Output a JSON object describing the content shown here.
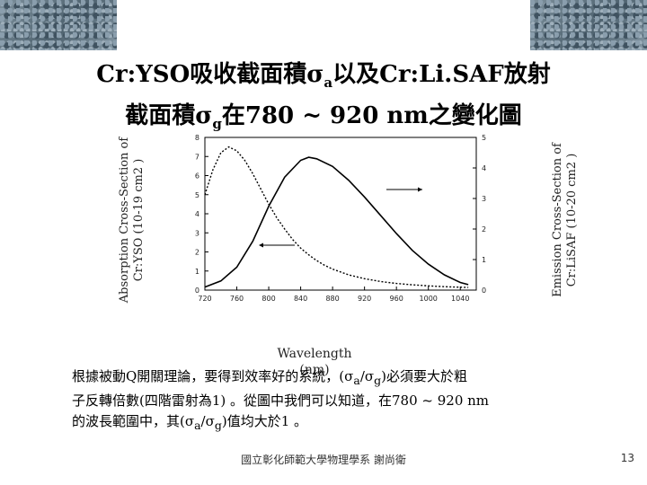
{
  "slide": {
    "title_line1_prefix": "Cr:YSO吸收截面積σ",
    "title_line1_sub": "a",
    "title_line1_suffix": "以及Cr:Li.SAF放射",
    "title_line2_prefix": "截面積σ",
    "title_line2_sub": "g",
    "title_line2_suffix": "在780 ~ 920 nm之變化圖",
    "body": {
      "l1a": "根據被動Q開關理論，要得到效率好的系統，(σ",
      "l1b": "a",
      "l1c": "/σ",
      "l1d": "g",
      "l1e": ")必須要大於粗",
      "l2": "子反轉倍數(四階雷射為1) 。從圖中我們可以知道，在780 ~ 920 nm",
      "l3a": "的波長範圍中，其(σ",
      "l3b": "a",
      "l3c": "/σ",
      "l3d": "g",
      "l3e": ")值均大於1 。"
    },
    "footer": "國立彰化師範大學物理學系 謝尚衛",
    "page_number": "13"
  },
  "chart_data": {
    "type": "line",
    "left_axis": {
      "label_line1": "Absorption Cross-Section of",
      "label_line2": "Cr:YSO (10-19 cm2 )",
      "ylim": [
        0,
        8
      ],
      "ticks": [
        "0",
        "1",
        "2",
        "3",
        "4",
        "5",
        "6",
        "7",
        "8"
      ]
    },
    "right_axis": {
      "label_line1": "Emission Cross-Section of",
      "label_line2": "Cr:LiSAF (10-20 cm2 )",
      "ylim": [
        0,
        5
      ],
      "ticks": [
        "0",
        "1",
        "2",
        "3",
        "4",
        "5"
      ]
    },
    "x_axis": {
      "label": "Wavelength",
      "unit": "(nm)",
      "xlim": [
        720,
        1060
      ],
      "ticks": [
        "720",
        "760",
        "800",
        "840",
        "880",
        "920",
        "960",
        "1000",
        "1040"
      ]
    },
    "series": [
      {
        "axis": "left",
        "style": "dashed",
        "x": [
          720,
          730,
          740,
          750,
          760,
          770,
          780,
          790,
          800,
          810,
          820,
          830,
          840,
          850,
          860,
          870,
          880,
          890,
          900,
          920,
          940,
          960,
          980,
          1000,
          1020,
          1040,
          1050
        ],
        "y": [
          5.0,
          6.3,
          7.2,
          7.5,
          7.3,
          6.8,
          6.1,
          5.3,
          4.5,
          3.8,
          3.2,
          2.65,
          2.2,
          1.85,
          1.55,
          1.3,
          1.1,
          0.95,
          0.8,
          0.6,
          0.45,
          0.35,
          0.28,
          0.22,
          0.18,
          0.15,
          0.14
        ]
      },
      {
        "axis": "right",
        "style": "solid",
        "x": [
          720,
          740,
          760,
          780,
          800,
          820,
          840,
          850,
          860,
          880,
          900,
          920,
          940,
          960,
          980,
          1000,
          1020,
          1040,
          1050
        ],
        "y": [
          0.1,
          0.3,
          0.75,
          1.6,
          2.75,
          3.7,
          4.25,
          4.35,
          4.3,
          4.05,
          3.6,
          3.05,
          2.45,
          1.85,
          1.3,
          0.85,
          0.5,
          0.25,
          0.18
        ]
      }
    ]
  }
}
